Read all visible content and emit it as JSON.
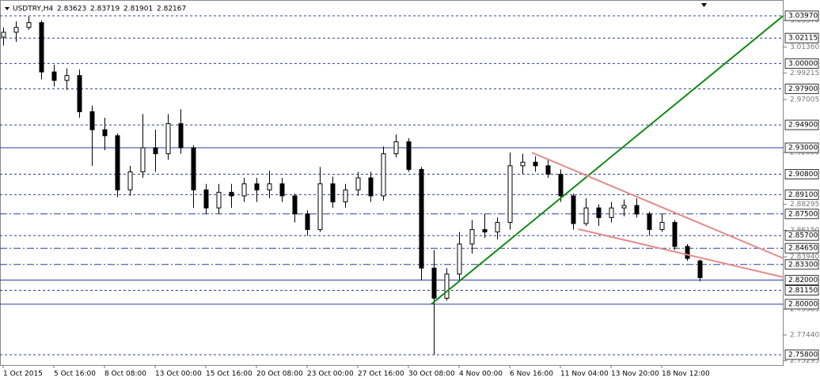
{
  "chart_data": {
    "type": "candlestick",
    "symbol": "USDTRY,H4",
    "header_values": [
      2.83623,
      2.83719,
      2.81901,
      2.82167
    ],
    "categories": [
      "1 Oct 2015",
      null,
      null,
      null,
      "5 Oct 16:00",
      null,
      null,
      null,
      "8 Oct 08:00",
      null,
      null,
      null,
      "13 Oct 00:00",
      null,
      null,
      null,
      "15 Oct 16:00",
      null,
      null,
      null,
      "20 Oct 08:00",
      null,
      null,
      null,
      "23 Oct 00:00",
      null,
      null,
      null,
      "27 Oct 16:00",
      null,
      null,
      null,
      "30 Oct 08:00",
      null,
      null,
      null,
      "4 Nov 00:00",
      null,
      null,
      null,
      "6 Nov 16:00",
      null,
      null,
      null,
      "11 Nov 04:00",
      null,
      null,
      null,
      "13 Nov 20:00",
      null,
      null,
      null,
      "18 Nov 12:00",
      null,
      null,
      null
    ],
    "open": [
      3.022,
      3.026,
      3.03,
      3.034,
      2.993,
      2.986,
      2.99,
      2.96,
      2.945,
      2.94,
      2.895,
      2.91,
      2.93,
      2.925,
      2.95,
      2.93,
      2.895,
      2.88,
      2.893,
      2.89,
      2.9,
      2.895,
      2.9,
      2.89,
      2.875,
      2.862,
      2.9,
      2.885,
      2.895,
      2.905,
      2.89,
      2.925,
      2.935,
      2.912,
      2.83,
      2.805,
      2.825,
      2.85,
      2.862,
      2.86,
      2.868,
      2.915,
      2.918,
      2.915,
      2.908,
      2.89,
      2.867,
      2.88,
      2.872,
      2.88,
      2.882,
      2.875,
      2.862,
      2.868,
      2.848,
      2.836
    ],
    "high": [
      3.03,
      3.035,
      3.039,
      3.036,
      2.999,
      2.996,
      2.995,
      2.965,
      2.955,
      2.942,
      2.915,
      2.958,
      2.945,
      2.958,
      2.962,
      2.932,
      2.9,
      2.9,
      2.9,
      2.905,
      2.905,
      2.911,
      2.905,
      2.892,
      2.878,
      2.914,
      2.906,
      2.9,
      2.91,
      2.91,
      2.931,
      2.941,
      2.938,
      2.914,
      2.845,
      2.83,
      2.86,
      2.87,
      2.875,
      2.872,
      2.926,
      2.925,
      2.923,
      2.92,
      2.912,
      2.892,
      2.888,
      2.883,
      2.885,
      2.887,
      2.888,
      2.877,
      2.875,
      2.87,
      2.85,
      2.837
    ],
    "low": [
      3.015,
      3.018,
      3.028,
      2.987,
      2.981,
      2.978,
      2.955,
      2.915,
      2.928,
      2.889,
      2.89,
      2.905,
      2.91,
      2.92,
      2.925,
      2.88,
      2.875,
      2.875,
      2.88,
      2.885,
      2.885,
      2.888,
      2.885,
      2.868,
      2.857,
      2.86,
      2.88,
      2.88,
      2.89,
      2.885,
      2.886,
      2.922,
      2.91,
      2.82,
      2.758,
      2.803,
      2.82,
      2.842,
      2.855,
      2.854,
      2.862,
      2.908,
      2.91,
      2.905,
      2.885,
      2.862,
      2.865,
      2.865,
      2.868,
      2.873,
      2.872,
      2.857,
      2.86,
      2.845,
      2.836,
      2.819
    ],
    "close": [
      3.026,
      3.03,
      3.034,
      2.993,
      2.986,
      2.99,
      2.96,
      2.945,
      2.94,
      2.895,
      2.91,
      2.93,
      2.925,
      2.95,
      2.93,
      2.895,
      2.88,
      2.893,
      2.89,
      2.9,
      2.895,
      2.9,
      2.89,
      2.875,
      2.862,
      2.9,
      2.885,
      2.895,
      2.905,
      2.89,
      2.925,
      2.935,
      2.912,
      2.83,
      2.805,
      2.825,
      2.85,
      2.862,
      2.86,
      2.868,
      2.915,
      2.918,
      2.915,
      2.908,
      2.89,
      2.867,
      2.88,
      2.872,
      2.88,
      2.882,
      2.875,
      2.862,
      2.868,
      2.848,
      2.838,
      2.822
    ],
    "ylim": [
      2.7488,
      3.0528
    ],
    "yticks": [
      {
        "value": 3.0357,
        "label": "3.03570"
      },
      {
        "value": 3.0136,
        "label": "3.01360"
      },
      {
        "value": 2.99215,
        "label": "2.99215"
      },
      {
        "value": 2.97005,
        "label": "2.97005"
      },
      {
        "value": 2.926,
        "label": "2.92600"
      },
      {
        "value": 2.88295,
        "label": "2.88295"
      },
      {
        "value": 2.8615,
        "label": "2.86150"
      },
      {
        "value": 2.8394,
        "label": "2.83940"
      },
      {
        "value": 2.79585,
        "label": "2.79585"
      },
      {
        "value": 2.7744,
        "label": "2.77440"
      },
      {
        "value": 2.75295,
        "label": "2.75295"
      }
    ],
    "levels": [
      {
        "value": 3.0397,
        "label": "3.03970",
        "style": "dashed"
      },
      {
        "value": 3.02115,
        "label": "3.02115",
        "style": "dashed"
      },
      {
        "value": 3.0,
        "label": "3.00000",
        "style": "dashed"
      },
      {
        "value": 2.979,
        "label": "2.97900",
        "style": "dashed"
      },
      {
        "value": 2.949,
        "label": "2.94900",
        "style": "dashed"
      },
      {
        "value": 2.93,
        "label": "2.93000",
        "style": "solid"
      },
      {
        "value": 2.908,
        "label": "2.90800",
        "style": "dashed"
      },
      {
        "value": 2.891,
        "label": "2.89100",
        "style": "dashed"
      },
      {
        "value": 2.875,
        "label": "2.87500",
        "style": "dashdot"
      },
      {
        "value": 2.857,
        "label": "2.85700",
        "style": "dashed"
      },
      {
        "value": 2.8465,
        "label": "2.84650",
        "style": "dashdot"
      },
      {
        "value": 2.833,
        "label": "2.83300",
        "style": "dashdot"
      },
      {
        "value": 2.82,
        "label": "2.82000",
        "style": "solid"
      },
      {
        "value": 2.8115,
        "label": "2.81150",
        "style": "dashed"
      },
      {
        "value": 2.8,
        "label": "2.80000",
        "style": "solid"
      },
      {
        "value": 2.758,
        "label": "2.75800",
        "style": "dashed"
      }
    ],
    "level_color": "#2b3f9e",
    "trendlines": [
      {
        "color": "#138a13",
        "x": [
          33.8,
          61.6
        ],
        "y": [
          2.8,
          3.0397
        ]
      },
      {
        "color": "#e58a8a",
        "x": [
          41.75,
          61.6
        ],
        "y": [
          2.926,
          2.8381
        ]
      },
      {
        "color": "#e58a8a",
        "x": [
          45.4,
          61.6
        ],
        "y": [
          2.8624,
          2.8224
        ]
      }
    ],
    "bull_color": "#ffffff",
    "bear_color": "#000000"
  }
}
